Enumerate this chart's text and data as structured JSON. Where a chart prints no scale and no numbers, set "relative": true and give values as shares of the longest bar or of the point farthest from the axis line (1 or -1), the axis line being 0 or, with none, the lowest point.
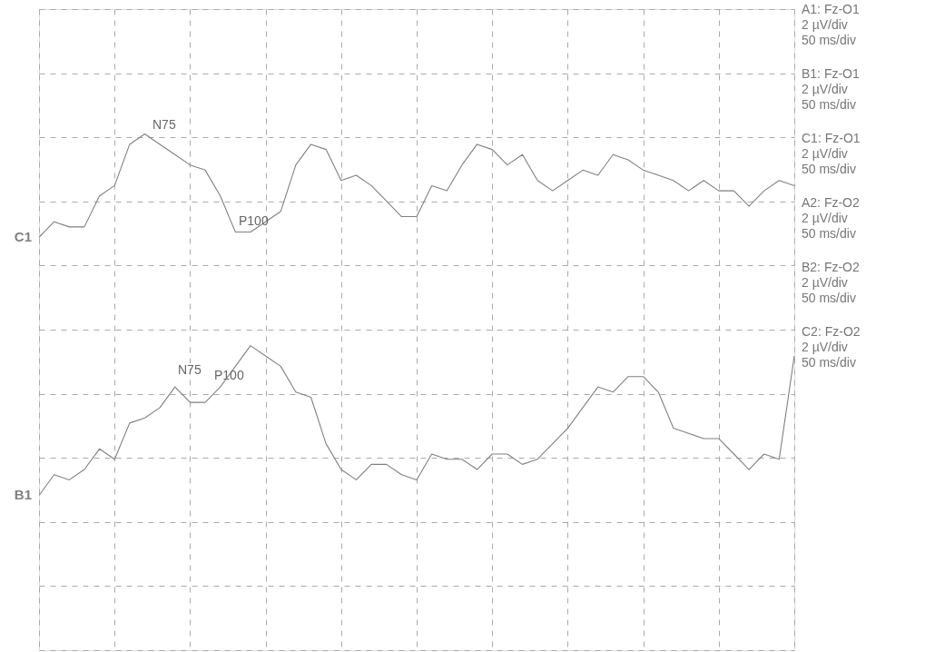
{
  "chart_data": {
    "type": "line",
    "relative": true,
    "grid": true,
    "marker": "none",
    "line_style": "solid",
    "categories": [
      null,
      null,
      null,
      null,
      null,
      null,
      null,
      null,
      null,
      null,
      null,
      null,
      null,
      null,
      null,
      null,
      null,
      null,
      null,
      null,
      null,
      null,
      null,
      null,
      null,
      null,
      null,
      null,
      null,
      null,
      null,
      null,
      null,
      null,
      null,
      null,
      null,
      null,
      null,
      null,
      null,
      null,
      null,
      null,
      null,
      null,
      null,
      null,
      null,
      null,
      null
    ],
    "series": [
      {
        "name": "C1",
        "color": "#808080",
        "values": [
          0.8,
          0.83,
          0.82,
          0.82,
          0.88,
          0.9,
          0.98,
          1.0,
          0.98,
          0.96,
          0.94,
          0.93,
          0.88,
          0.81,
          0.81,
          0.83,
          0.85,
          0.94,
          0.98,
          0.97,
          0.91,
          0.92,
          0.9,
          0.87,
          0.84,
          0.84,
          0.9,
          0.89,
          0.94,
          0.98,
          0.97,
          0.94,
          0.96,
          0.91,
          0.89,
          0.91,
          0.93,
          0.92,
          0.96,
          0.95,
          0.93,
          0.92,
          0.91,
          0.89,
          0.91,
          0.89,
          0.89,
          0.86,
          0.89,
          0.91,
          0.9
        ]
      },
      {
        "name": "B1",
        "color": "#808080",
        "values": [
          0.3,
          0.34,
          0.33,
          0.35,
          0.39,
          0.37,
          0.44,
          0.45,
          0.47,
          0.51,
          0.48,
          0.48,
          0.51,
          0.55,
          0.59,
          0.57,
          0.55,
          0.5,
          0.49,
          0.4,
          0.35,
          0.33,
          0.36,
          0.36,
          0.34,
          0.33,
          0.38,
          0.37,
          0.37,
          0.35,
          0.38,
          0.38,
          0.36,
          0.37,
          0.4,
          0.43,
          0.47,
          0.51,
          0.5,
          0.53,
          0.53,
          0.5,
          0.43,
          0.42,
          0.41,
          0.41,
          0.38,
          0.35,
          0.38,
          0.37,
          0.57
        ]
      }
    ],
    "annotations": [
      "N75",
      "P100",
      "N75",
      "P100",
      "A1: Fz-O1\n2 µV/div\n50 ms/div",
      "B1: Fz-O1\n2 µV/div\n50 ms/div",
      "C1: Fz-O1\n2 µV/div\n50 ms/div",
      "A2: Fz-O2\n2 µV/div\n50 ms/div",
      "B2: Fz-O2\n2 µV/div\n50 ms/div",
      "C2: Fz-O2\n2 µV/div\n50 ms/div"
    ]
  }
}
